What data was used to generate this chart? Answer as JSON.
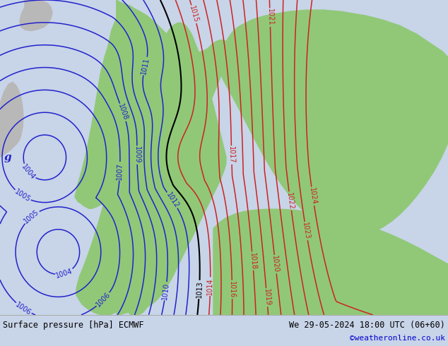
{
  "title_left": "Surface pressure [hPa] ECMWF",
  "title_right": "We 29-05-2024 18:00 UTC (06+60)",
  "credit": "©weatheronline.co.uk",
  "bg_color": "#c8d4e8",
  "land_green_color": "#90c878",
  "land_gray_color": "#b8b8b8",
  "sea_color": "#c8d4e8",
  "blue_contour_color": "#2222cc",
  "red_contour_color": "#cc2222",
  "black_contour_color": "#000000",
  "bottom_bar_color": "#d8d8d8",
  "text_color_left": "#000000",
  "text_color_right": "#000000",
  "credit_color": "#0000cc",
  "figsize": [
    6.34,
    4.9
  ],
  "dpi": 100
}
